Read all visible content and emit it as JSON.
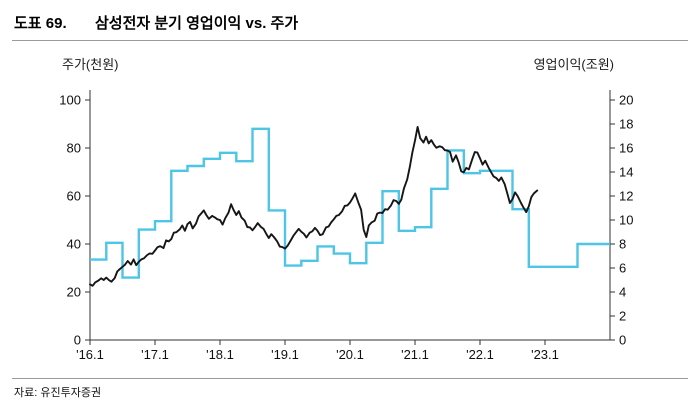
{
  "header": {
    "doc_label": "도표 69.",
    "title": "삼성전자 분기 영업이익 vs. 주가"
  },
  "source": "자료: 유진투자증권",
  "chart_data": {
    "type": "line",
    "title": "삼성전자 분기 영업이익 vs. 주가",
    "grid": false,
    "legend": "none",
    "left_axis": {
      "label": "주가(천원)",
      "min": 0,
      "max": 100,
      "step": 20
    },
    "right_axis": {
      "label": "영업이익(조원)",
      "min": 0,
      "max": 20,
      "step": 2
    },
    "x_axis": {
      "start": 2016,
      "end": 2024,
      "ticks": [
        {
          "year": 2016,
          "label": "'16.1"
        },
        {
          "year": 2017,
          "label": "'17.1"
        },
        {
          "year": 2018,
          "label": "'18.1"
        },
        {
          "year": 2019,
          "label": "'19.1"
        },
        {
          "year": 2020,
          "label": "'20.1"
        },
        {
          "year": 2021,
          "label": "'21.1"
        },
        {
          "year": 2022,
          "label": "'22.1"
        },
        {
          "year": 2023,
          "label": "'23.1"
        }
      ]
    },
    "series": [
      {
        "name": "주가(천원)",
        "kind": "line",
        "axis": "left",
        "color": "#161616",
        "points": [
          [
            2016.0,
            23.2
          ],
          [
            2016.04,
            22.6
          ],
          [
            2016.08,
            24.0
          ],
          [
            2016.13,
            24.8
          ],
          [
            2016.17,
            25.7
          ],
          [
            2016.21,
            25.0
          ],
          [
            2016.25,
            26.0
          ],
          [
            2016.29,
            25.0
          ],
          [
            2016.33,
            24.3
          ],
          [
            2016.38,
            25.8
          ],
          [
            2016.42,
            28.6
          ],
          [
            2016.46,
            29.6
          ],
          [
            2016.5,
            30.5
          ],
          [
            2016.54,
            31.4
          ],
          [
            2016.58,
            32.9
          ],
          [
            2016.63,
            31.4
          ],
          [
            2016.67,
            33.6
          ],
          [
            2016.71,
            31.2
          ],
          [
            2016.75,
            32.6
          ],
          [
            2016.79,
            33.6
          ],
          [
            2016.83,
            34.0
          ],
          [
            2016.88,
            35.4
          ],
          [
            2016.92,
            36.1
          ],
          [
            2016.96,
            35.9
          ],
          [
            2017.0,
            37.3
          ],
          [
            2017.04,
            38.7
          ],
          [
            2017.08,
            39.1
          ],
          [
            2017.13,
            38.3
          ],
          [
            2017.17,
            41.5
          ],
          [
            2017.21,
            41.1
          ],
          [
            2017.25,
            42.1
          ],
          [
            2017.29,
            44.7
          ],
          [
            2017.33,
            44.9
          ],
          [
            2017.38,
            46.1
          ],
          [
            2017.42,
            47.7
          ],
          [
            2017.46,
            45.5
          ],
          [
            2017.5,
            48.3
          ],
          [
            2017.54,
            49.2
          ],
          [
            2017.58,
            46.5
          ],
          [
            2017.63,
            48.5
          ],
          [
            2017.67,
            51.5
          ],
          [
            2017.71,
            52.7
          ],
          [
            2017.75,
            54.0
          ],
          [
            2017.79,
            52.1
          ],
          [
            2017.83,
            50.5
          ],
          [
            2017.88,
            51.7
          ],
          [
            2017.92,
            51.1
          ],
          [
            2017.96,
            50.3
          ],
          [
            2018.0,
            50.0
          ],
          [
            2018.04,
            48.1
          ],
          [
            2018.08,
            50.7
          ],
          [
            2018.13,
            53.1
          ],
          [
            2018.17,
            56.6
          ],
          [
            2018.21,
            54.1
          ],
          [
            2018.25,
            52.1
          ],
          [
            2018.29,
            53.7
          ],
          [
            2018.33,
            51.1
          ],
          [
            2018.38,
            49.7
          ],
          [
            2018.42,
            47.1
          ],
          [
            2018.46,
            46.9
          ],
          [
            2018.5,
            45.7
          ],
          [
            2018.54,
            47.1
          ],
          [
            2018.58,
            48.7
          ],
          [
            2018.63,
            47.1
          ],
          [
            2018.67,
            46.3
          ],
          [
            2018.71,
            44.3
          ],
          [
            2018.75,
            42.5
          ],
          [
            2018.79,
            44.1
          ],
          [
            2018.83,
            42.9
          ],
          [
            2018.88,
            41.1
          ],
          [
            2018.92,
            38.9
          ],
          [
            2018.96,
            38.7
          ],
          [
            2019.0,
            38.1
          ],
          [
            2019.04,
            39.3
          ],
          [
            2019.08,
            41.1
          ],
          [
            2019.13,
            43.5
          ],
          [
            2019.17,
            44.9
          ],
          [
            2019.21,
            46.3
          ],
          [
            2019.25,
            45.1
          ],
          [
            2019.29,
            44.3
          ],
          [
            2019.33,
            42.7
          ],
          [
            2019.38,
            44.7
          ],
          [
            2019.42,
            45.3
          ],
          [
            2019.46,
            46.7
          ],
          [
            2019.5,
            45.5
          ],
          [
            2019.54,
            43.7
          ],
          [
            2019.58,
            44.1
          ],
          [
            2019.63,
            46.9
          ],
          [
            2019.67,
            47.3
          ],
          [
            2019.71,
            49.0
          ],
          [
            2019.75,
            50.3
          ],
          [
            2019.79,
            51.7
          ],
          [
            2019.83,
            52.1
          ],
          [
            2019.88,
            53.7
          ],
          [
            2019.92,
            55.9
          ],
          [
            2019.96,
            56.1
          ],
          [
            2020.0,
            57.3
          ],
          [
            2020.04,
            59.1
          ],
          [
            2020.08,
            61.1
          ],
          [
            2020.13,
            57.1
          ],
          [
            2020.17,
            54.3
          ],
          [
            2020.21,
            45.9
          ],
          [
            2020.25,
            42.9
          ],
          [
            2020.29,
            47.7
          ],
          [
            2020.33,
            48.9
          ],
          [
            2020.38,
            49.7
          ],
          [
            2020.42,
            52.7
          ],
          [
            2020.46,
            53.1
          ],
          [
            2020.5,
            52.9
          ],
          [
            2020.54,
            54.5
          ],
          [
            2020.58,
            54.3
          ],
          [
            2020.63,
            56.1
          ],
          [
            2020.67,
            58.3
          ],
          [
            2020.71,
            57.9
          ],
          [
            2020.75,
            56.7
          ],
          [
            2020.79,
            58.5
          ],
          [
            2020.83,
            63.1
          ],
          [
            2020.88,
            66.9
          ],
          [
            2020.92,
            72.1
          ],
          [
            2020.96,
            78.2
          ],
          [
            2021.0,
            83.1
          ],
          [
            2021.04,
            88.8
          ],
          [
            2021.08,
            84.1
          ],
          [
            2021.13,
            82.3
          ],
          [
            2021.17,
            84.7
          ],
          [
            2021.21,
            81.9
          ],
          [
            2021.25,
            83.3
          ],
          [
            2021.29,
            81.5
          ],
          [
            2021.33,
            80.1
          ],
          [
            2021.38,
            80.7
          ],
          [
            2021.42,
            80.3
          ],
          [
            2021.46,
            79.1
          ],
          [
            2021.5,
            78.9
          ],
          [
            2021.54,
            78.3
          ],
          [
            2021.58,
            74.3
          ],
          [
            2021.63,
            76.9
          ],
          [
            2021.67,
            74.1
          ],
          [
            2021.71,
            70.3
          ],
          [
            2021.75,
            69.9
          ],
          [
            2021.79,
            71.7
          ],
          [
            2021.83,
            71.1
          ],
          [
            2021.88,
            75.3
          ],
          [
            2021.92,
            78.3
          ],
          [
            2021.96,
            78.1
          ],
          [
            2022.0,
            75.7
          ],
          [
            2022.04,
            73.1
          ],
          [
            2022.08,
            74.7
          ],
          [
            2022.13,
            71.9
          ],
          [
            2022.17,
            69.9
          ],
          [
            2022.21,
            68.1
          ],
          [
            2022.25,
            67.5
          ],
          [
            2022.29,
            66.3
          ],
          [
            2022.33,
            67.7
          ],
          [
            2022.38,
            64.9
          ],
          [
            2022.42,
            61.1
          ],
          [
            2022.46,
            57.1
          ],
          [
            2022.5,
            58.7
          ],
          [
            2022.54,
            61.5
          ],
          [
            2022.58,
            59.9
          ],
          [
            2022.63,
            57.1
          ],
          [
            2022.67,
            55.1
          ],
          [
            2022.71,
            53.3
          ],
          [
            2022.75,
            55.7
          ],
          [
            2022.79,
            59.5
          ],
          [
            2022.83,
            61.1
          ],
          [
            2022.88,
            62.3
          ]
        ]
      },
      {
        "name": "분기 영업이익(조원)",
        "kind": "step",
        "axis": "right",
        "color": "#4cc5e6",
        "start_year": 2016,
        "quarter_values": [
          6.7,
          8.1,
          5.2,
          9.2,
          9.9,
          14.1,
          14.5,
          15.1,
          15.6,
          14.9,
          17.6,
          10.8,
          6.2,
          6.6,
          7.8,
          7.2,
          6.4,
          8.1,
          12.4,
          9.1,
          9.4,
          12.6,
          15.8,
          13.9,
          14.1,
          14.1,
          10.9,
          6.1,
          6.1,
          6.1,
          8.0,
          8.0
        ]
      }
    ]
  }
}
